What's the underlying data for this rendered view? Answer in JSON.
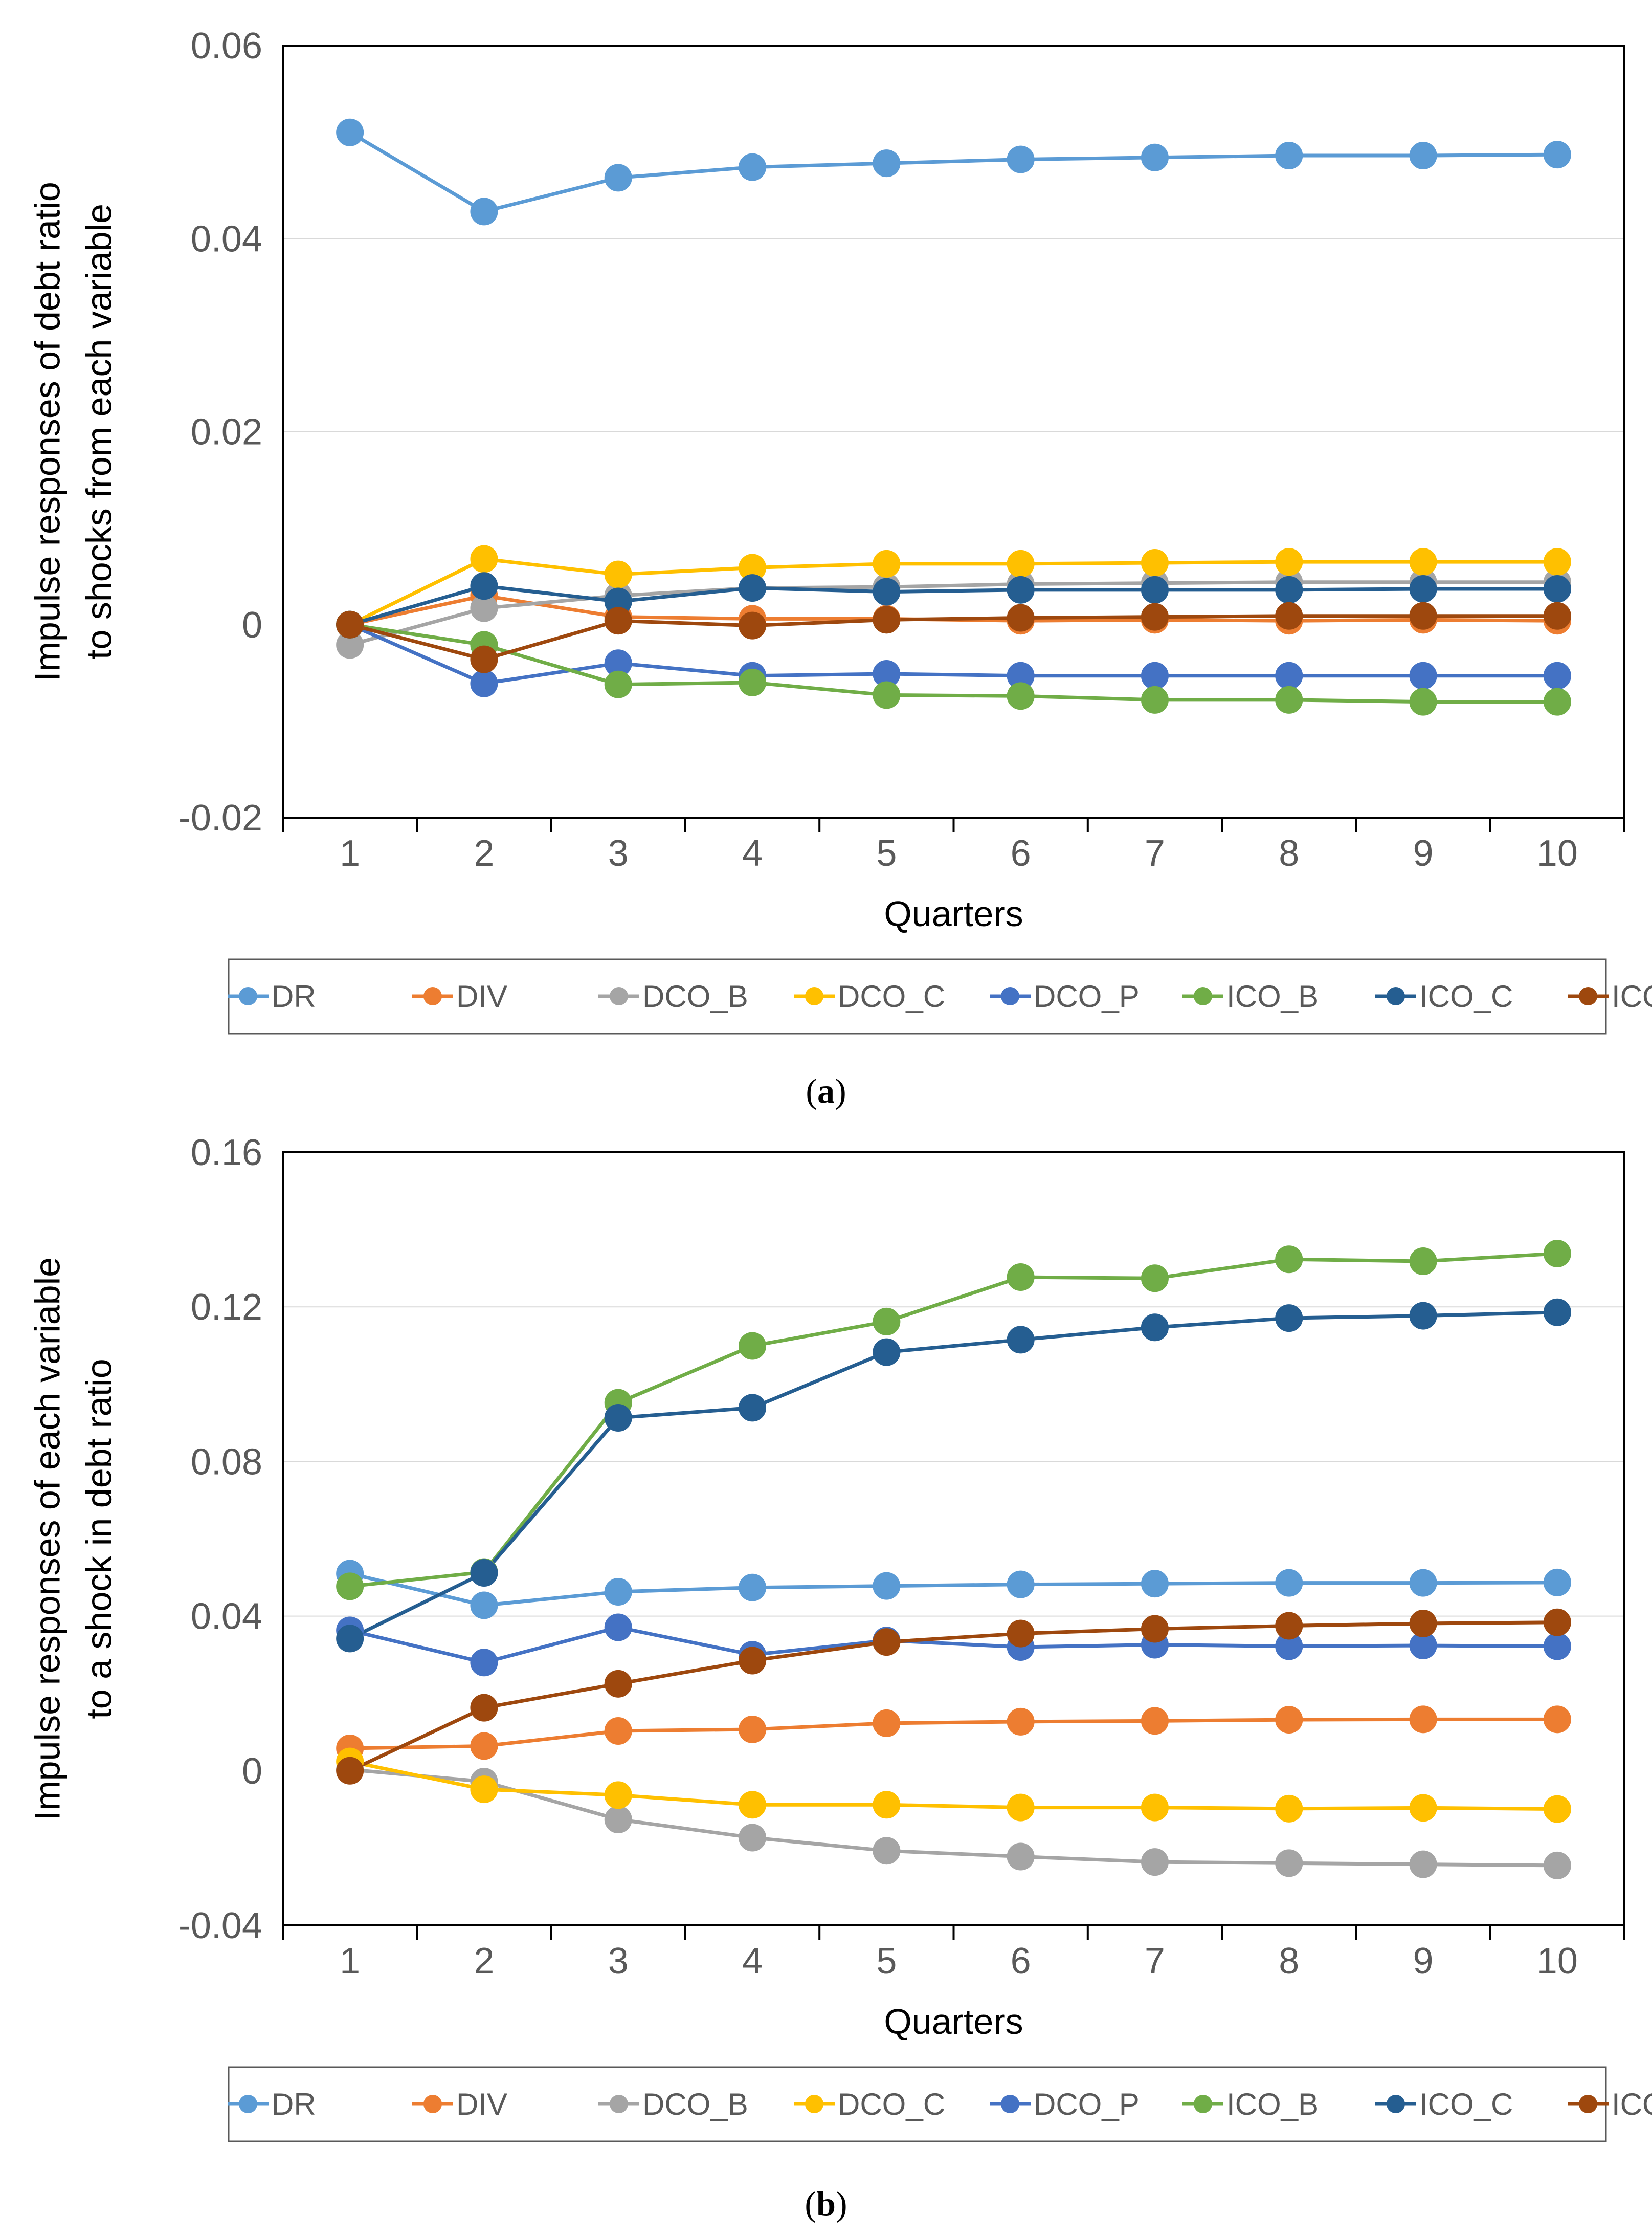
{
  "colors": {
    "DR": "#5B9BD5",
    "DIV": "#ED7D31",
    "DCO_B": "#A5A5A5",
    "DCO_C": "#FFC000",
    "DCO_P": "#4472C4",
    "ICO_B": "#70AD47",
    "ICO_C": "#255E91",
    "ICO_P": "#9E480E"
  },
  "chart_data": [
    {
      "type": "line",
      "caption_letter": "a",
      "caption_open": "(",
      "caption_close": ")",
      "xlabel": "Quarters",
      "ylabel_lines": [
        "Impulse responses of debt ratio",
        "to shocks from each variable"
      ],
      "x": [
        1,
        2,
        3,
        4,
        5,
        6,
        7,
        8,
        9,
        10
      ],
      "ylim": [
        -0.02,
        0.06
      ],
      "yticks": [
        -0.02,
        0,
        0.02,
        0.04,
        0.06
      ],
      "ytick_labels": [
        "-0.02",
        "0",
        "0.02",
        "0.04",
        "0.06"
      ],
      "grid": true,
      "legend": "bottom",
      "series": [
        {
          "name": "DR",
          "values": [
            0.051,
            0.0428,
            0.0463,
            0.0474,
            0.0478,
            0.0482,
            0.0484,
            0.0486,
            0.0486,
            0.0487
          ]
        },
        {
          "name": "DIV",
          "values": [
            0,
            0.003,
            0.0008,
            0.0006,
            0.0006,
            0.0004,
            0.0005,
            0.0004,
            0.0005,
            0.0004
          ]
        },
        {
          "name": "DCO_B",
          "values": [
            -0.0021,
            0.0017,
            0.003,
            0.0038,
            0.0039,
            0.0042,
            0.0043,
            0.0044,
            0.0044,
            0.0044
          ]
        },
        {
          "name": "DCO_C",
          "values": [
            0,
            0.0068,
            0.0052,
            0.0059,
            0.0063,
            0.0063,
            0.0064,
            0.0065,
            0.0065,
            0.0065
          ]
        },
        {
          "name": "DCO_P",
          "values": [
            0,
            -0.0061,
            -0.004,
            -0.0053,
            -0.0051,
            -0.0053,
            -0.0053,
            -0.0053,
            -0.0053,
            -0.0053
          ]
        },
        {
          "name": "ICO_B",
          "values": [
            0,
            -0.0021,
            -0.0062,
            -0.006,
            -0.0073,
            -0.0074,
            -0.0078,
            -0.0078,
            -0.008,
            -0.008
          ]
        },
        {
          "name": "ICO_C",
          "values": [
            0,
            0.004,
            0.0024,
            0.0038,
            0.0034,
            0.0036,
            0.0036,
            0.0036,
            0.0037,
            0.0037
          ]
        },
        {
          "name": "ICO_P",
          "values": [
            0,
            -0.0036,
            0.0004,
            -0.0001,
            0.0005,
            0.0007,
            0.0008,
            0.0009,
            0.0009,
            0.0009
          ]
        }
      ]
    },
    {
      "type": "line",
      "caption_letter": "b",
      "caption_open": "(",
      "caption_close": ")",
      "xlabel": "Quarters",
      "ylabel_lines": [
        "Impulse responses of each variable",
        "to a shock in debt ratio"
      ],
      "x": [
        1,
        2,
        3,
        4,
        5,
        6,
        7,
        8,
        9,
        10
      ],
      "ylim": [
        -0.04,
        0.16
      ],
      "yticks": [
        -0.04,
        0,
        0.04,
        0.08,
        0.12,
        0.16
      ],
      "ytick_labels": [
        "-0.04",
        "0",
        "0.04",
        "0.08",
        "0.12",
        "0.16"
      ],
      "grid": true,
      "legend": "bottom",
      "series": [
        {
          "name": "DR",
          "values": [
            0.051,
            0.0428,
            0.0463,
            0.0474,
            0.0478,
            0.0482,
            0.0484,
            0.0486,
            0.0486,
            0.0487
          ]
        },
        {
          "name": "DIV",
          "values": [
            0.0058,
            0.0064,
            0.0103,
            0.0107,
            0.0123,
            0.0127,
            0.0129,
            0.0132,
            0.0133,
            0.0133
          ]
        },
        {
          "name": "DCO_B",
          "values": [
            0.0003,
            -0.0028,
            -0.0126,
            -0.0173,
            -0.0207,
            -0.0222,
            -0.0236,
            -0.0239,
            -0.0242,
            -0.0245
          ]
        },
        {
          "name": "DCO_C",
          "values": [
            0.0024,
            -0.0048,
            -0.0063,
            -0.0088,
            -0.0088,
            -0.0095,
            -0.0095,
            -0.0098,
            -0.0096,
            -0.0099
          ]
        },
        {
          "name": "DCO_P",
          "values": [
            0.0363,
            0.028,
            0.0371,
            0.03,
            0.0337,
            0.032,
            0.0326,
            0.0322,
            0.0324,
            0.0322
          ]
        },
        {
          "name": "ICO_B",
          "values": [
            0.0477,
            0.0514,
            0.0952,
            0.1099,
            0.1162,
            0.1277,
            0.1274,
            0.1323,
            0.1318,
            0.1338
          ]
        },
        {
          "name": "ICO_C",
          "values": [
            0.0342,
            0.0512,
            0.0913,
            0.0939,
            0.1083,
            0.1115,
            0.1147,
            0.1171,
            0.1177,
            0.1186
          ]
        },
        {
          "name": "ICO_P",
          "values": [
            0,
            0.0163,
            0.0225,
            0.0285,
            0.0333,
            0.0355,
            0.0367,
            0.0375,
            0.0381,
            0.0384
          ]
        }
      ]
    }
  ]
}
